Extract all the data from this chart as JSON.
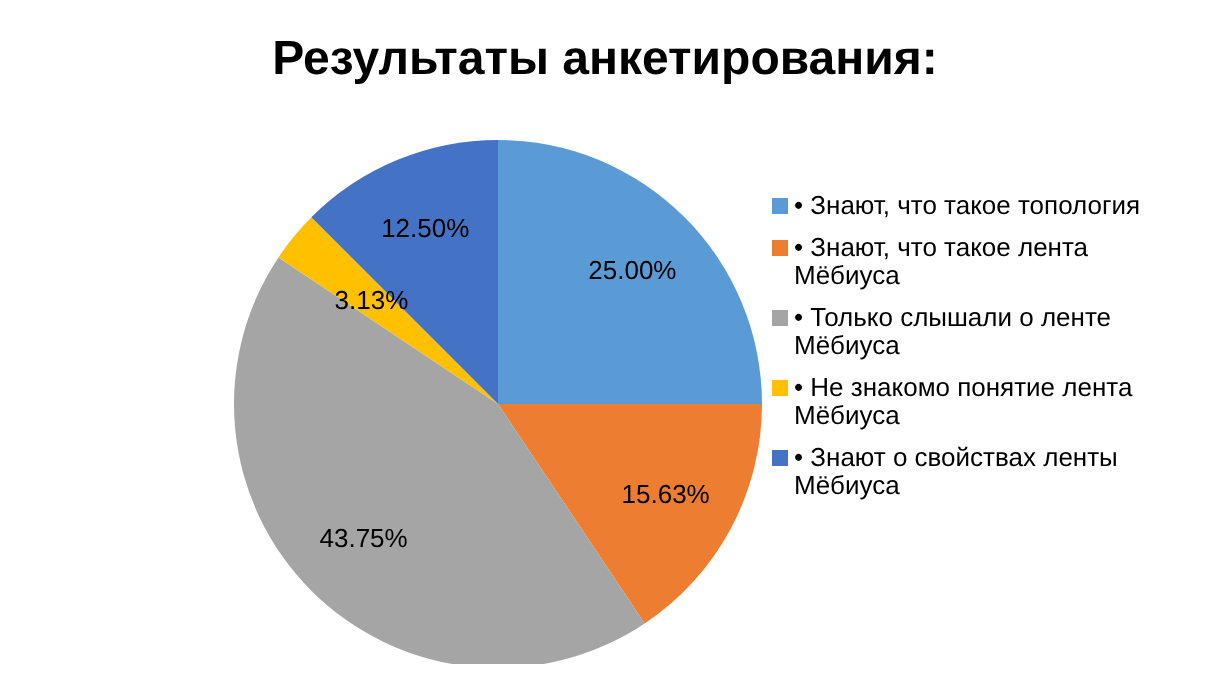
{
  "chart_data": {
    "type": "pie",
    "title": "Результаты анкетирования:",
    "categories": [
      "• Знают, что такое топология",
      "• Знают, что такое лента Мёбиуса",
      "• Только слышали о ленте Мёбиуса",
      "• Не знакомо понятие лента Мёбиуса",
      "• Знают о свойствах ленты Мёбиуса"
    ],
    "values": [
      25,
      15.63,
      43.75,
      3.13,
      12.5
    ],
    "value_labels": [
      "25.00%",
      "15.63%",
      "43.75%",
      "3.13%",
      "12.50%"
    ],
    "colors": [
      "#5b9bd5",
      "#ed7d31",
      "#a5a5a5",
      "#ffc000",
      "#4472c4"
    ],
    "legend": "right"
  }
}
